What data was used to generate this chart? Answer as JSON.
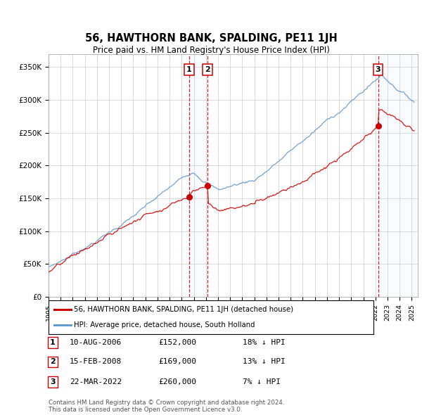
{
  "title": "56, HAWTHORN BANK, SPALDING, PE11 1JH",
  "subtitle": "Price paid vs. HM Land Registry's House Price Index (HPI)",
  "ylim": [
    0,
    370000
  ],
  "yticks": [
    0,
    50000,
    100000,
    150000,
    200000,
    250000,
    300000,
    350000
  ],
  "xlim_start": 1995.0,
  "xlim_end": 2025.5,
  "sale_years": [
    2006.604,
    2008.121,
    2022.221
  ],
  "sale_prices": [
    152000,
    169000,
    260000
  ],
  "sale_labels": [
    "1",
    "2",
    "3"
  ],
  "sale_hpi_diff": [
    "18% ↓ HPI",
    "13% ↓ HPI",
    "7% ↓ HPI"
  ],
  "sale_date_labels": [
    "10-AUG-2006",
    "15-FEB-2008",
    "22-MAR-2022"
  ],
  "property_line_color": "#cc0000",
  "hpi_line_color": "#6699cc",
  "vline_color": "#cc0000",
  "vline_shade_color": "#ddeeff",
  "background_color": "#ffffff",
  "grid_color": "#cccccc",
  "legend_property": "56, HAWTHORN BANK, SPALDING, PE11 1JH (detached house)",
  "legend_hpi": "HPI: Average price, detached house, South Holland",
  "footer1": "Contains HM Land Registry data © Crown copyright and database right 2024.",
  "footer2": "This data is licensed under the Open Government Licence v3.0."
}
